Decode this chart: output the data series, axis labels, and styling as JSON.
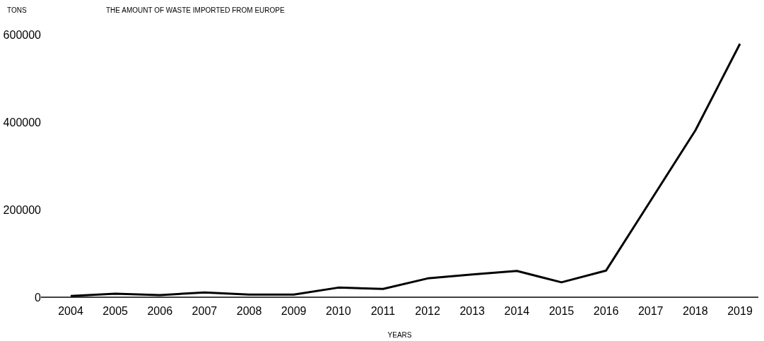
{
  "chart_data": {
    "type": "line",
    "title": "THE AMOUNT OF WASTE IMPORTED FROM EUROPE",
    "ylabel": "TONS",
    "xlabel": "YEARS",
    "categories": [
      "2004",
      "2005",
      "2006",
      "2007",
      "2008",
      "2009",
      "2010",
      "2011",
      "2012",
      "2013",
      "2014",
      "2015",
      "2016",
      "2017",
      "2018",
      "2019"
    ],
    "series": [
      {
        "color": "#000000",
        "values": [
          3000,
          8000,
          5000,
          11000,
          6000,
          6000,
          22000,
          19000,
          43000,
          52000,
          60000,
          34000,
          61000,
          221000,
          381000,
          579000
        ]
      }
    ],
    "ylim": [
      0,
      600000
    ],
    "yticks": [
      0,
      200000,
      400000,
      600000
    ],
    "grid": false,
    "marker": "none",
    "line_style": "solid"
  }
}
